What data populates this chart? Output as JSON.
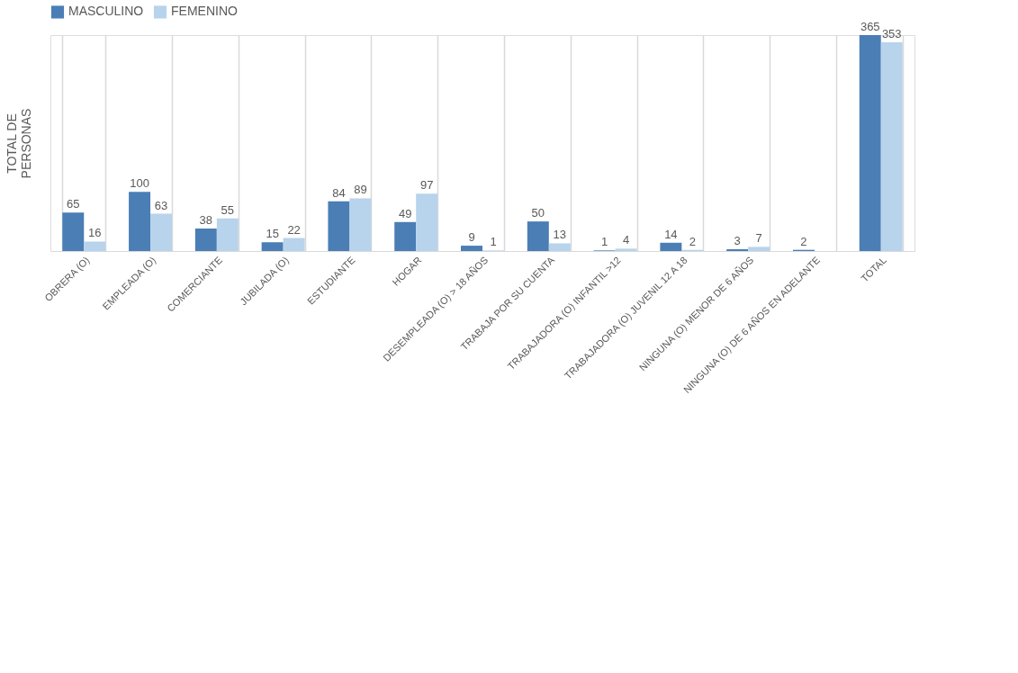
{
  "chart_data": {
    "type": "bar",
    "ylabel": "TOTAL DE\nPERSONAS",
    "categories": [
      "OBRERA (O)",
      "EMPLEADA (O)",
      "COMERCIANTE",
      "JUBILADA (O)",
      "ESTUDIANTE",
      "HOGAR",
      "DESEMPLEADA (O) > 18 AÑOS",
      "TRABAJA POR SU CUENTA",
      "TRABAJADORA (O) INFANTIL >12",
      "TRABAJADORA (O) JUVENIL 12 A 18",
      "NINGUNA (O) MENOR DE 6 AÑOS",
      "NINGUNA (O) DE 6 AÑOS EN ADELANTE",
      "TOTAL"
    ],
    "series": [
      {
        "name": "MASCULINO",
        "color": "#4a7eb5",
        "values": [
          65,
          100,
          38,
          15,
          84,
          49,
          9,
          50,
          1,
          14,
          3,
          2,
          365
        ]
      },
      {
        "name": "FEMENINO",
        "color": "#b8d3ec",
        "values": [
          16,
          63,
          55,
          22,
          89,
          97,
          1,
          13,
          4,
          2,
          7,
          null,
          353
        ]
      }
    ],
    "data_labels": true,
    "legend": "top",
    "grid": "x"
  }
}
